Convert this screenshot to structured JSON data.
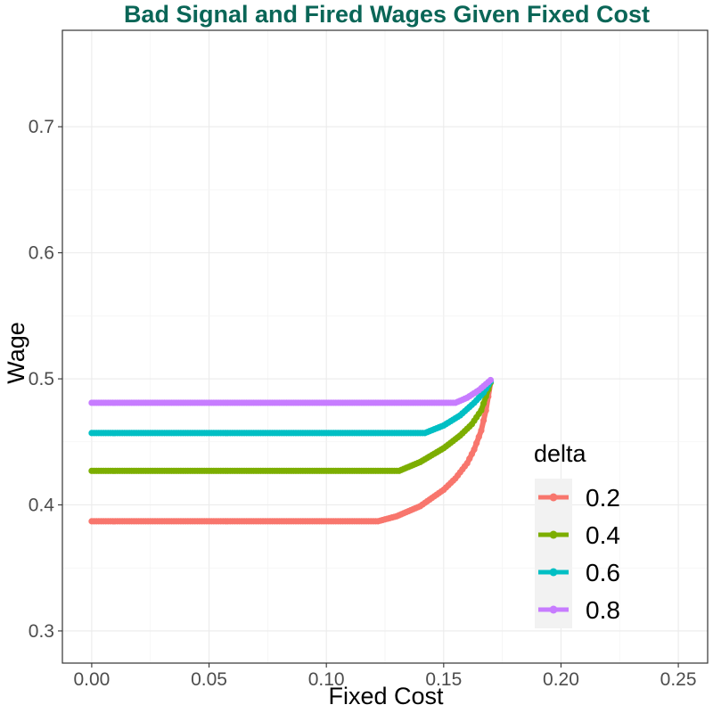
{
  "chart_data": {
    "type": "line",
    "title": "Bad Signal and Fired Wages Given Fixed Cost",
    "title_color": "#0a6657",
    "xlabel": "Fixed Cost",
    "ylabel": "Wage",
    "xlim": [
      -0.0125,
      0.2625
    ],
    "ylim": [
      0.2745,
      0.7765
    ],
    "x_ticks": [
      0.0,
      0.05,
      0.1,
      0.15,
      0.2,
      0.25
    ],
    "x_tick_labels": [
      "0.00",
      "0.05",
      "0.10",
      "0.15",
      "0.20",
      "0.25"
    ],
    "y_ticks": [
      0.3,
      0.4,
      0.5,
      0.6,
      0.7
    ],
    "y_tick_labels": [
      "0.3",
      "0.4",
      "0.5",
      "0.6",
      "0.7"
    ],
    "grid": true,
    "legend": {
      "title": "delta",
      "position": "right-bottom"
    },
    "series": [
      {
        "name": "0.2",
        "color": "#f8766d",
        "x": [
          0.0,
          0.02,
          0.04,
          0.06,
          0.08,
          0.1,
          0.122,
          0.13,
          0.14,
          0.15,
          0.155,
          0.16,
          0.163,
          0.166,
          0.168,
          0.17
        ],
        "y": [
          0.387,
          0.387,
          0.387,
          0.387,
          0.387,
          0.387,
          0.387,
          0.391,
          0.399,
          0.412,
          0.421,
          0.433,
          0.444,
          0.459,
          0.475,
          0.497
        ]
      },
      {
        "name": "0.4",
        "color": "#7cae00",
        "x": [
          0.0,
          0.02,
          0.04,
          0.06,
          0.08,
          0.1,
          0.12,
          0.131,
          0.14,
          0.15,
          0.157,
          0.162,
          0.166,
          0.17
        ],
        "y": [
          0.427,
          0.427,
          0.427,
          0.427,
          0.427,
          0.427,
          0.427,
          0.427,
          0.434,
          0.445,
          0.455,
          0.464,
          0.475,
          0.497
        ]
      },
      {
        "name": "0.6",
        "color": "#00bfc4",
        "x": [
          0.0,
          0.02,
          0.04,
          0.06,
          0.08,
          0.1,
          0.12,
          0.142,
          0.15,
          0.157,
          0.163,
          0.167,
          0.17
        ],
        "y": [
          0.457,
          0.457,
          0.457,
          0.457,
          0.457,
          0.457,
          0.457,
          0.457,
          0.463,
          0.471,
          0.481,
          0.489,
          0.498
        ]
      },
      {
        "name": "0.8",
        "color": "#c77cff",
        "x": [
          0.0,
          0.02,
          0.04,
          0.06,
          0.08,
          0.1,
          0.12,
          0.14,
          0.155,
          0.16,
          0.165,
          0.17
        ],
        "y": [
          0.481,
          0.481,
          0.481,
          0.481,
          0.481,
          0.481,
          0.481,
          0.481,
          0.481,
          0.485,
          0.491,
          0.499
        ]
      }
    ]
  }
}
